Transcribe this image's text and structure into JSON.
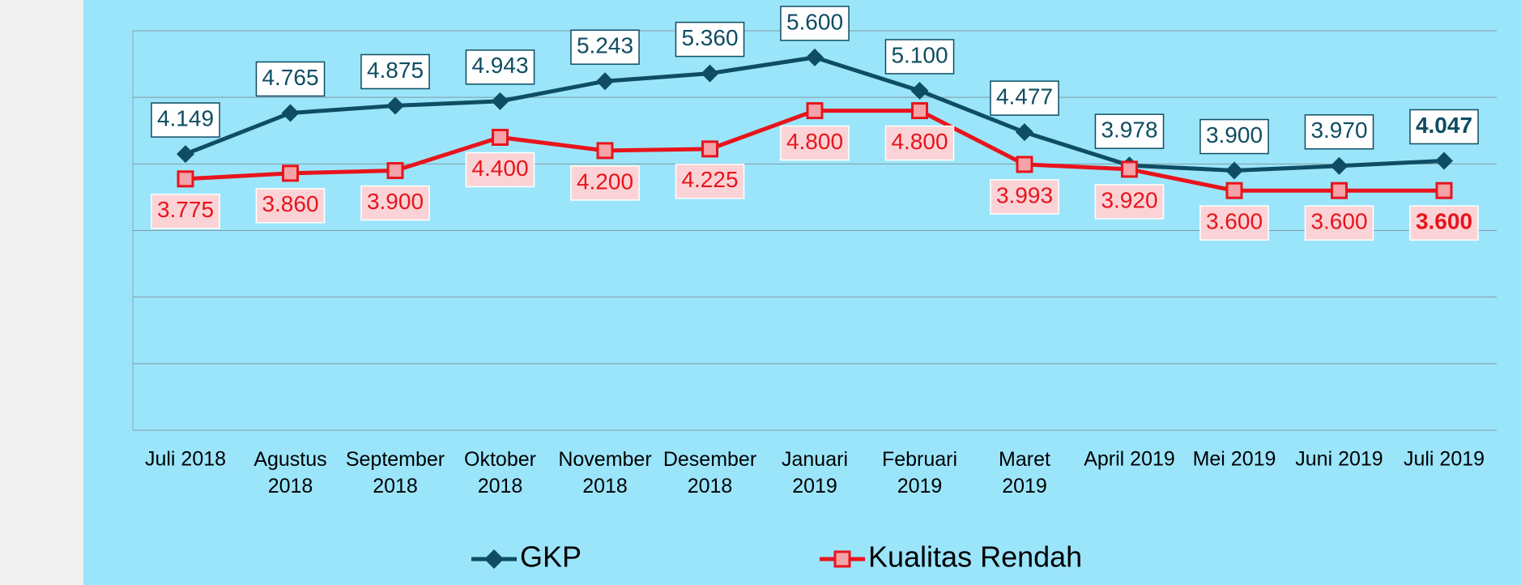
{
  "chart_data": {
    "type": "line",
    "categories": [
      "Juli 2018",
      "Agustus\n2018",
      "September\n2018",
      "Oktober\n2018",
      "November\n2018",
      "Desember\n2018",
      "Januari\n2019",
      "Februari\n2019",
      "Maret\n2019",
      "April 2019",
      "Mei 2019",
      "Juni 2019",
      "Juli 2019"
    ],
    "series": [
      {
        "name": "GKP",
        "color": "#0e4d62",
        "marker": "diamond",
        "values": [
          4.149,
          4.765,
          4.875,
          4.943,
          5.243,
          5.36,
          5.6,
          5.1,
          4.477,
          3.978,
          3.9,
          3.97,
          4.047
        ],
        "value_labels": [
          "4.149",
          "4.765",
          "4.875",
          "4.943",
          "5.243",
          "5.360",
          "5.600",
          "5.100",
          "4.477",
          "3.978",
          "3.900",
          "3.970",
          "4.047"
        ]
      },
      {
        "name": "Kualitas Rendah",
        "color": "#e8141c",
        "marker": "square",
        "values": [
          3.775,
          3.86,
          3.9,
          4.4,
          4.2,
          4.225,
          4.8,
          4.8,
          3.993,
          3.92,
          3.6,
          3.6,
          3.6
        ],
        "value_labels": [
          "3.775",
          "3.860",
          "3.900",
          "4.400",
          "4.200",
          "4.225",
          "4.800",
          "4.800",
          "3.993",
          "3.920",
          "3.600",
          "3.600",
          "3.600"
        ]
      }
    ],
    "ylim": [
      0,
      6
    ],
    "yticks": [
      0,
      1,
      2,
      3,
      4,
      5,
      6
    ],
    "grid": true,
    "legend": "bottom"
  }
}
